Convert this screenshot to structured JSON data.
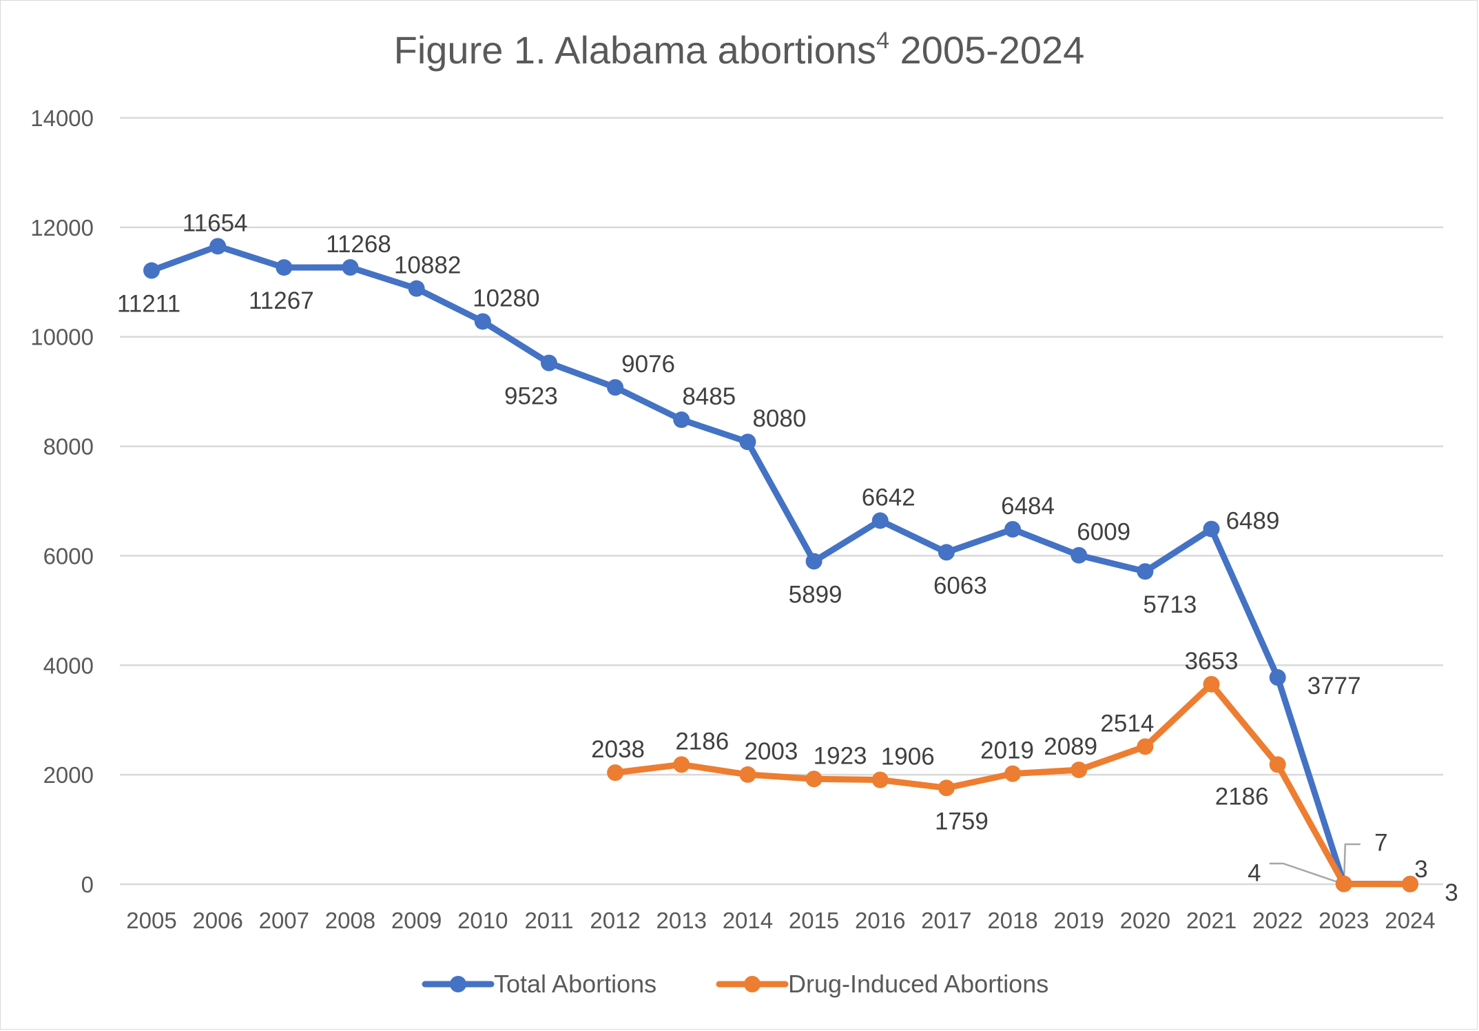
{
  "chart_data": {
    "type": "line",
    "title": "Figure 1. Alabama abortions",
    "title_superscript": "4",
    "title_suffix": " 2005-2024",
    "xlabel": "",
    "ylabel": "",
    "ylim": [
      0,
      14000
    ],
    "yticks": [
      0,
      2000,
      4000,
      6000,
      8000,
      10000,
      12000,
      14000
    ],
    "grid": true,
    "legend_position": "bottom",
    "categories": [
      "2005",
      "2006",
      "2007",
      "2008",
      "2009",
      "2010",
      "2011",
      "2012",
      "2013",
      "2014",
      "2015",
      "2016",
      "2017",
      "2018",
      "2019",
      "2020",
      "2021",
      "2022",
      "2023",
      "2024"
    ],
    "series": [
      {
        "name": "Total Abortions",
        "color": "#4472C4",
        "values": [
          11211,
          11654,
          11267,
          11268,
          10882,
          10280,
          9523,
          9076,
          8485,
          8080,
          5899,
          6642,
          6063,
          6484,
          6009,
          5713,
          6489,
          3777,
          7,
          3
        ]
      },
      {
        "name": "Drug-Induced Abortions",
        "color": "#ED7D31",
        "values": [
          null,
          null,
          null,
          null,
          null,
          null,
          null,
          2038,
          2186,
          2003,
          1923,
          1906,
          1759,
          2019,
          2089,
          2514,
          3653,
          2186,
          4,
          3
        ]
      }
    ]
  }
}
